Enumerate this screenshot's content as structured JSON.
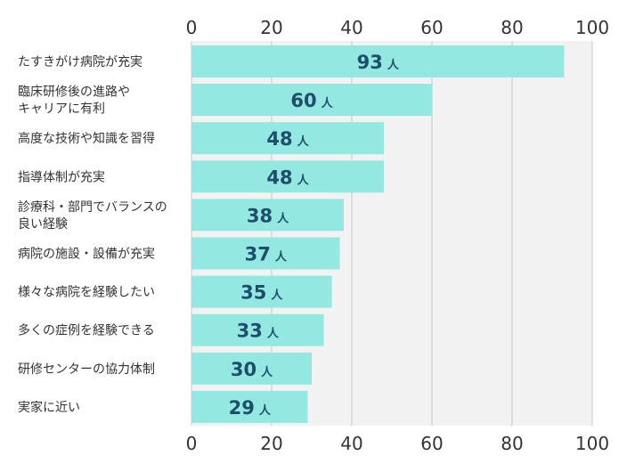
{
  "chart_data": {
    "type": "bar",
    "orientation": "horizontal",
    "categories": [
      [
        "たすきがけ病院が充実"
      ],
      [
        "臨床研修後の進路や",
        "キャリアに有利"
      ],
      [
        "高度な技術や知識を習得"
      ],
      [
        "指導体制が充実"
      ],
      [
        "診療科・部門でバランスの",
        "良い経験"
      ],
      [
        "病院の施設・設備が充実"
      ],
      [
        "様々な病院を経験したい"
      ],
      [
        "多くの症例を経験できる"
      ],
      [
        "研修センターの協力体制"
      ],
      [
        "実家に近い"
      ]
    ],
    "values": [
      93,
      60,
      48,
      48,
      38,
      37,
      35,
      33,
      30,
      29
    ],
    "unit": "人",
    "xlim": [
      0,
      100
    ],
    "xticks": [
      0,
      20,
      40,
      60,
      80,
      100
    ],
    "grid": true,
    "axis_labels_position": "top-and-bottom",
    "colors": {
      "bar": "#93e8e2",
      "plot_background": "#f2f2f2",
      "grid": "#c8c8c8",
      "value_text": "#1f4e6b",
      "label_text": "#333333"
    }
  }
}
